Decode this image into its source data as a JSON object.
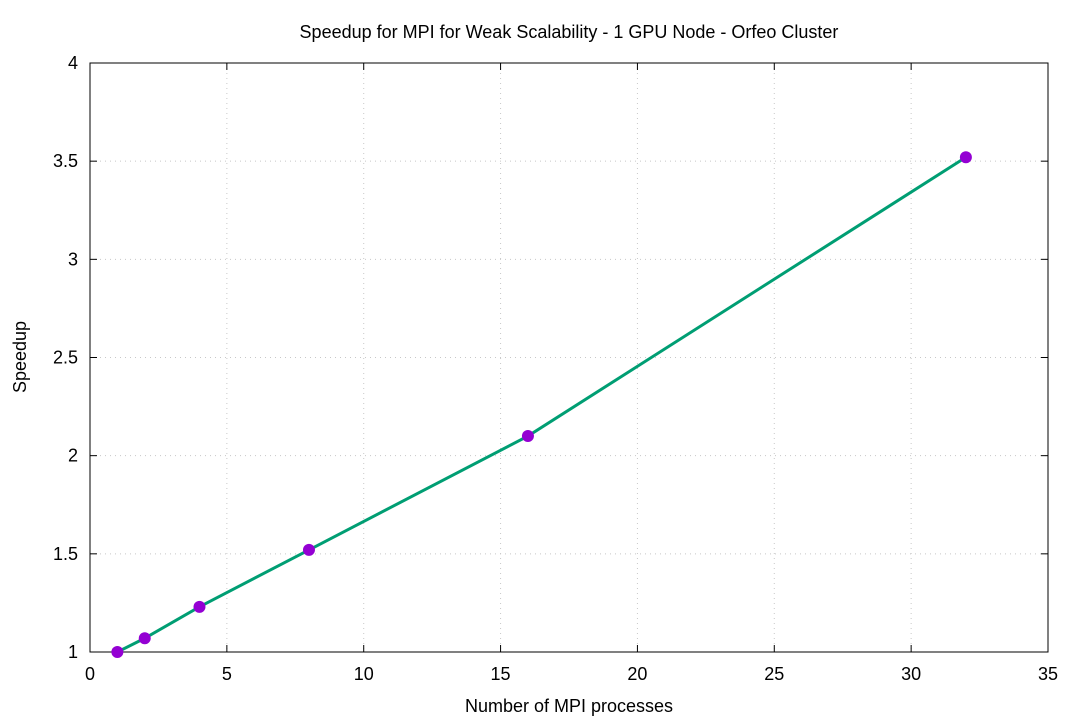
{
  "chart_data": {
    "type": "line",
    "title": "Speedup for MPI for Weak Scalability - 1 GPU Node - Orfeo Cluster",
    "xlabel": "Number of MPI processes",
    "ylabel": "Speedup",
    "xlim": [
      0,
      35
    ],
    "ylim": [
      1,
      4
    ],
    "xticks": [
      0,
      5,
      10,
      15,
      20,
      25,
      30,
      35
    ],
    "yticks": [
      1,
      1.5,
      2,
      2.5,
      3,
      3.5,
      4
    ],
    "xtick_labels": [
      "0",
      "5",
      "10",
      "15",
      "20",
      "25",
      "30",
      "35"
    ],
    "ytick_labels": [
      "1",
      "1.5",
      "2",
      "2.5",
      "3",
      "3.5",
      "4"
    ],
    "grid": true,
    "legend": "none",
    "series": [
      {
        "x": [
          1,
          2,
          4,
          8,
          16,
          32
        ],
        "y": [
          1.0,
          1.07,
          1.23,
          1.52,
          2.1,
          3.52
        ],
        "line_color": "#009e73",
        "marker_color": "#9400d3"
      }
    ]
  }
}
